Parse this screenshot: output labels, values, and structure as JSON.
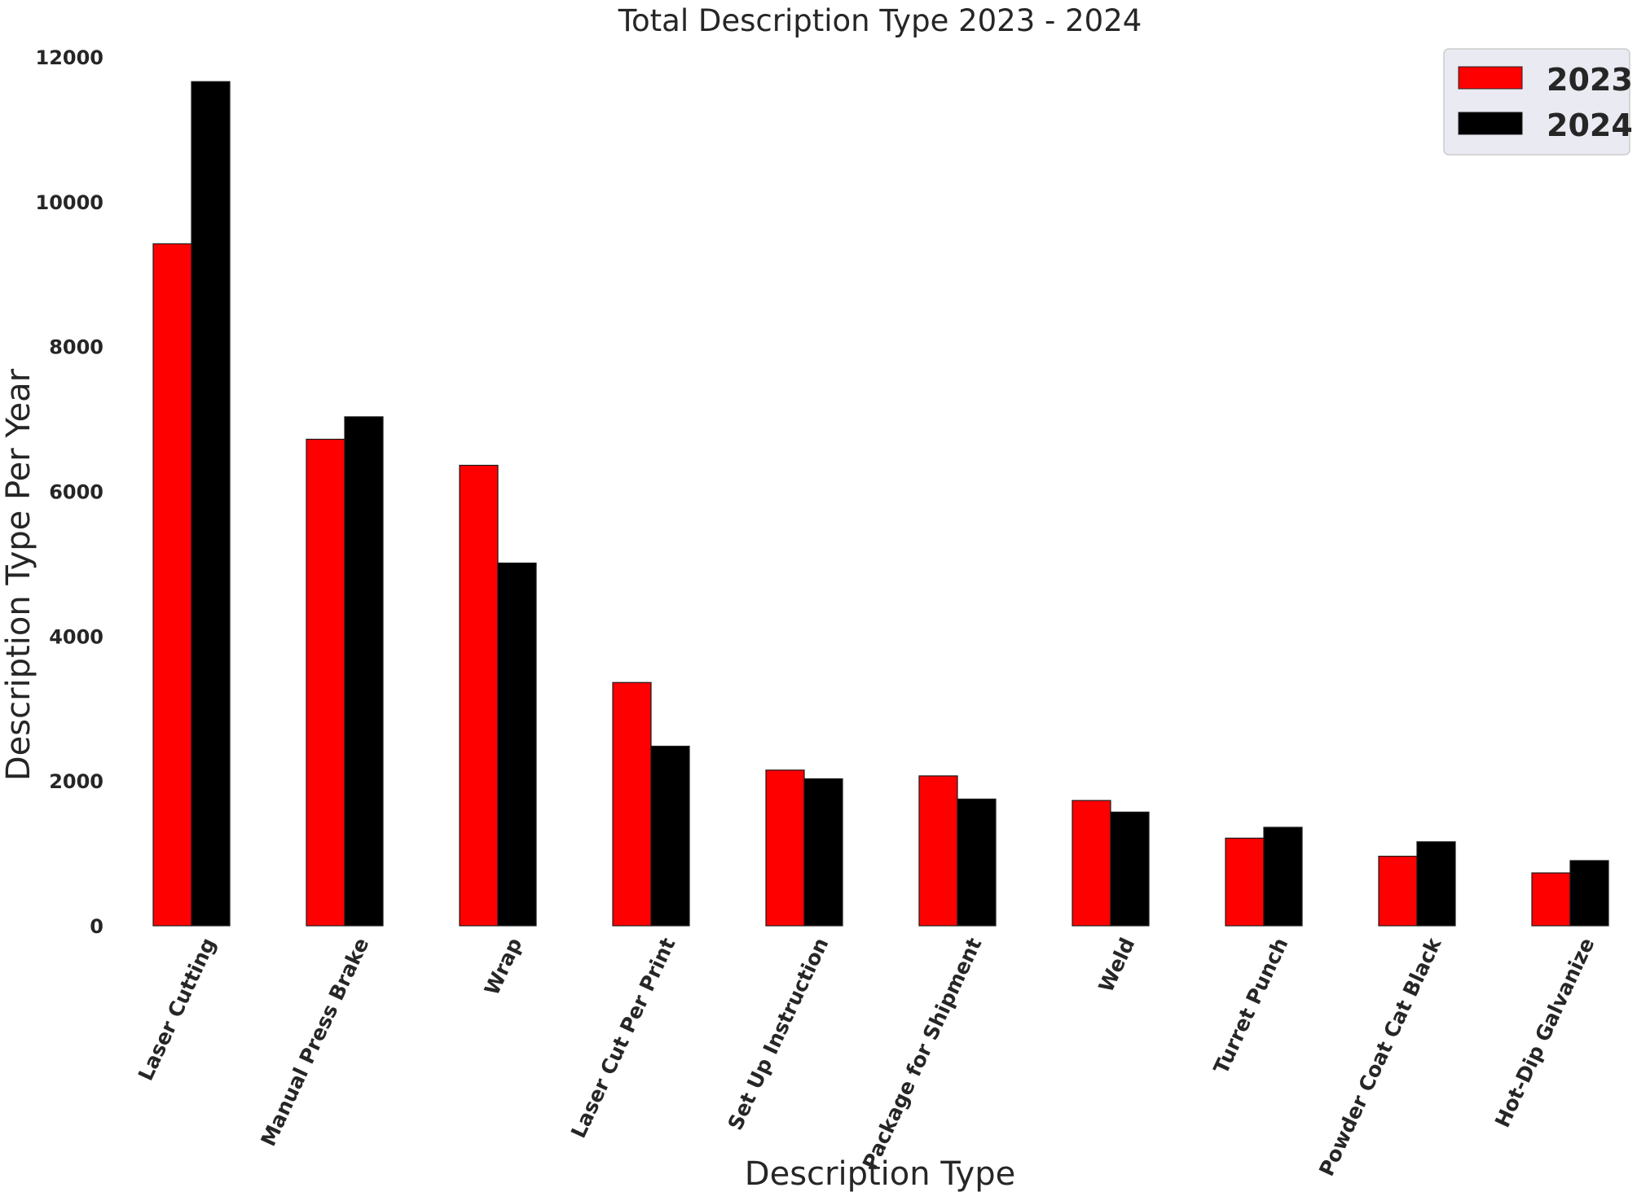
{
  "chart_data": {
    "type": "bar",
    "title": "Total Description Type 2023 - 2024",
    "xlabel": "Description Type",
    "ylabel": "Description Type Per Year",
    "categories": [
      "Laser Cutting",
      "Manual Press Brake",
      "Wrap",
      "Laser Cut Per Print",
      "Set Up Instruction",
      "Package for Shipment",
      "Weld",
      "Turret Punch",
      "Powder Coat Cat Black",
      "Hot-Dip Galvanize"
    ],
    "series": [
      {
        "name": "2023",
        "color": "#ff0000",
        "values": [
          9420,
          6720,
          6360,
          3360,
          2150,
          2070,
          1730,
          1210,
          960,
          730
        ]
      },
      {
        "name": "2024",
        "color": "#000000",
        "values": [
          11660,
          7030,
          5010,
          2480,
          2030,
          1750,
          1570,
          1360,
          1160,
          900
        ]
      }
    ],
    "ylim": [
      0,
      12000
    ],
    "yticks": [
      0,
      2000,
      4000,
      6000,
      8000,
      10000,
      12000
    ],
    "grid": false,
    "legend": "top-right"
  }
}
